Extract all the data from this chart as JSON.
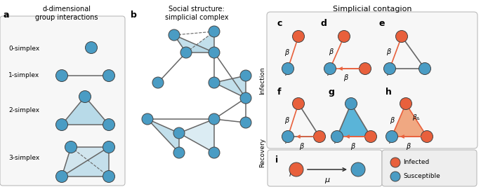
{
  "node_blue": "#4a9cc4",
  "node_orange": "#e8603c",
  "fill_blue_light": "#b8dae8",
  "fill_blue_strong": "#5ab4d8",
  "fill_orange_light": "#f0a882",
  "edge_gray": "#666666",
  "background": "#ffffff",
  "box_face": "#f7f7f7",
  "box_edge": "#bbbbbb",
  "panels": {
    "a_label": "d-dimensional\ngroup interactions",
    "b_label": "Social structure:\nsimplicial complex",
    "c_label": "Simplicial contagion"
  }
}
